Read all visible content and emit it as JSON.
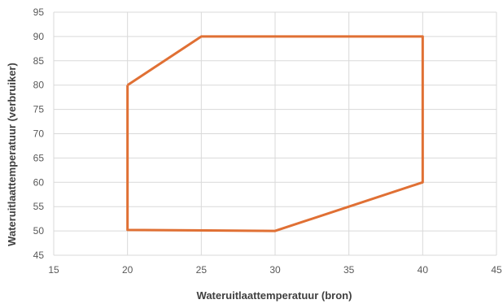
{
  "chart_data": {
    "type": "line",
    "title": "",
    "xlabel": "Wateruitlaattemperatuur (bron)",
    "ylabel": "Wateruitlaattemperatuur (verbruiker)",
    "xlim": [
      15,
      45
    ],
    "ylim": [
      45,
      95
    ],
    "xticks": [
      "15",
      "20",
      "25",
      "30",
      "35",
      "40",
      "45"
    ],
    "yticks": [
      "45",
      "50",
      "55",
      "60",
      "65",
      "70",
      "75",
      "80",
      "85",
      "90",
      "95"
    ],
    "grid": "vertical and horizontal",
    "legend": "none",
    "series": [
      {
        "color": "#E07034",
        "x": [
          20,
          25,
          40,
          40,
          30,
          20,
          20
        ],
        "y": [
          80,
          90,
          90,
          60,
          50,
          50.2,
          80
        ]
      }
    ]
  }
}
